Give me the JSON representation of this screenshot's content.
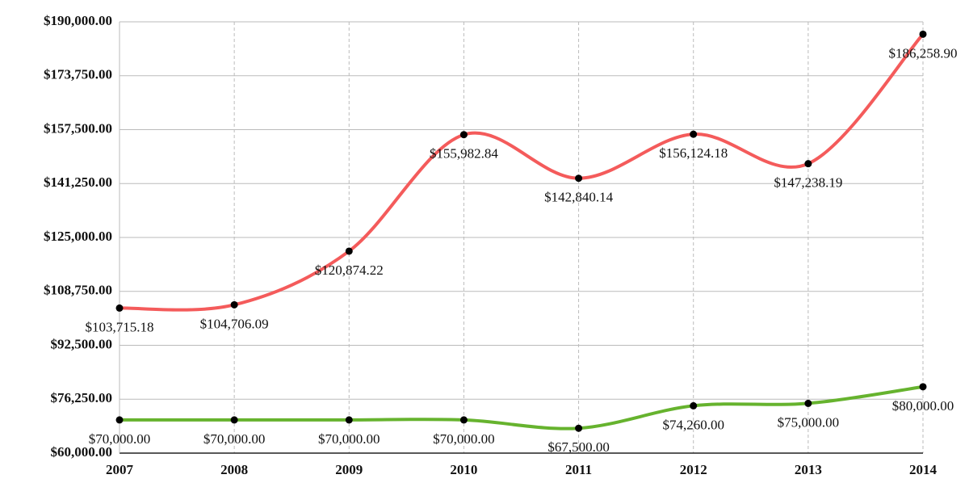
{
  "chart_data": {
    "type": "line",
    "categories": [
      "2007",
      "2008",
      "2009",
      "2010",
      "2011",
      "2012",
      "2013",
      "2014"
    ],
    "series": [
      {
        "color": "#f45b5b",
        "values": [
          103715.18,
          104706.09,
          120874.22,
          155982.84,
          142840.14,
          156124.18,
          147238.19,
          186258.9
        ],
        "value_labels": [
          "$103,715.18",
          "$104,706.09",
          "$120,874.22",
          "$155,982.84",
          "$142,840.14",
          "$156,124.18",
          "$147,238.19",
          "$186,258.90"
        ]
      },
      {
        "color": "#66b32e",
        "values": [
          70000,
          70000,
          70000,
          70000,
          67500,
          74260,
          75000,
          80000
        ],
        "value_labels": [
          "$70,000.00",
          "$70,000.00",
          "$70,000.00",
          "$70,000.00",
          "$67,500.00",
          "$74,260.00",
          "$75,000.00",
          "$80,000.00"
        ]
      }
    ],
    "ylim": [
      60000,
      190000
    ],
    "yticks": [
      {
        "value": 60000,
        "label": "$60,000.00"
      },
      {
        "value": 76250,
        "label": "$76,250.00"
      },
      {
        "value": 92500,
        "label": "$92,500.00"
      },
      {
        "value": 108750,
        "label": "$108,750.00"
      },
      {
        "value": 125000,
        "label": "$125,000.00"
      },
      {
        "value": 141250,
        "label": "$141,250.00"
      },
      {
        "value": 157500,
        "label": "$157,500.00"
      },
      {
        "value": 173750,
        "label": "$173,750.00"
      },
      {
        "value": 190000,
        "label": "$190,000.00"
      }
    ],
    "grid": true
  }
}
